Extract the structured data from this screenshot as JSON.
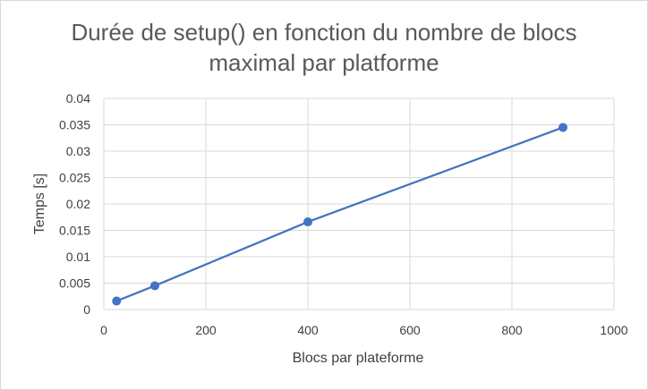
{
  "chart_data": {
    "type": "scatter",
    "title_lines": [
      "Durée de setup() en fonction du nombre de blocs",
      "maximal par platforme"
    ],
    "xlabel": "Blocs par plateforme",
    "ylabel": "Temps [s]",
    "xlim": [
      0,
      1000
    ],
    "ylim": [
      0,
      0.04
    ],
    "x_ticks": [
      "0",
      "200",
      "400",
      "600",
      "800",
      "1000"
    ],
    "y_ticks": [
      "0",
      "0.005",
      "0.01",
      "0.015",
      "0.02",
      "0.025",
      "0.03",
      "0.035",
      "0.04"
    ],
    "grid": true,
    "legend": "none",
    "series": [
      {
        "color": "#4472c4",
        "connected": true,
        "points": [
          {
            "x": 25,
            "y": 0.0016
          },
          {
            "x": 100,
            "y": 0.0045
          },
          {
            "x": 400,
            "y": 0.0166
          },
          {
            "x": 900,
            "y": 0.0345
          }
        ]
      }
    ],
    "colors": {
      "gridline": "#d9d9d9",
      "title": "#595959",
      "text": "#404040",
      "series": "#4472c4"
    }
  }
}
